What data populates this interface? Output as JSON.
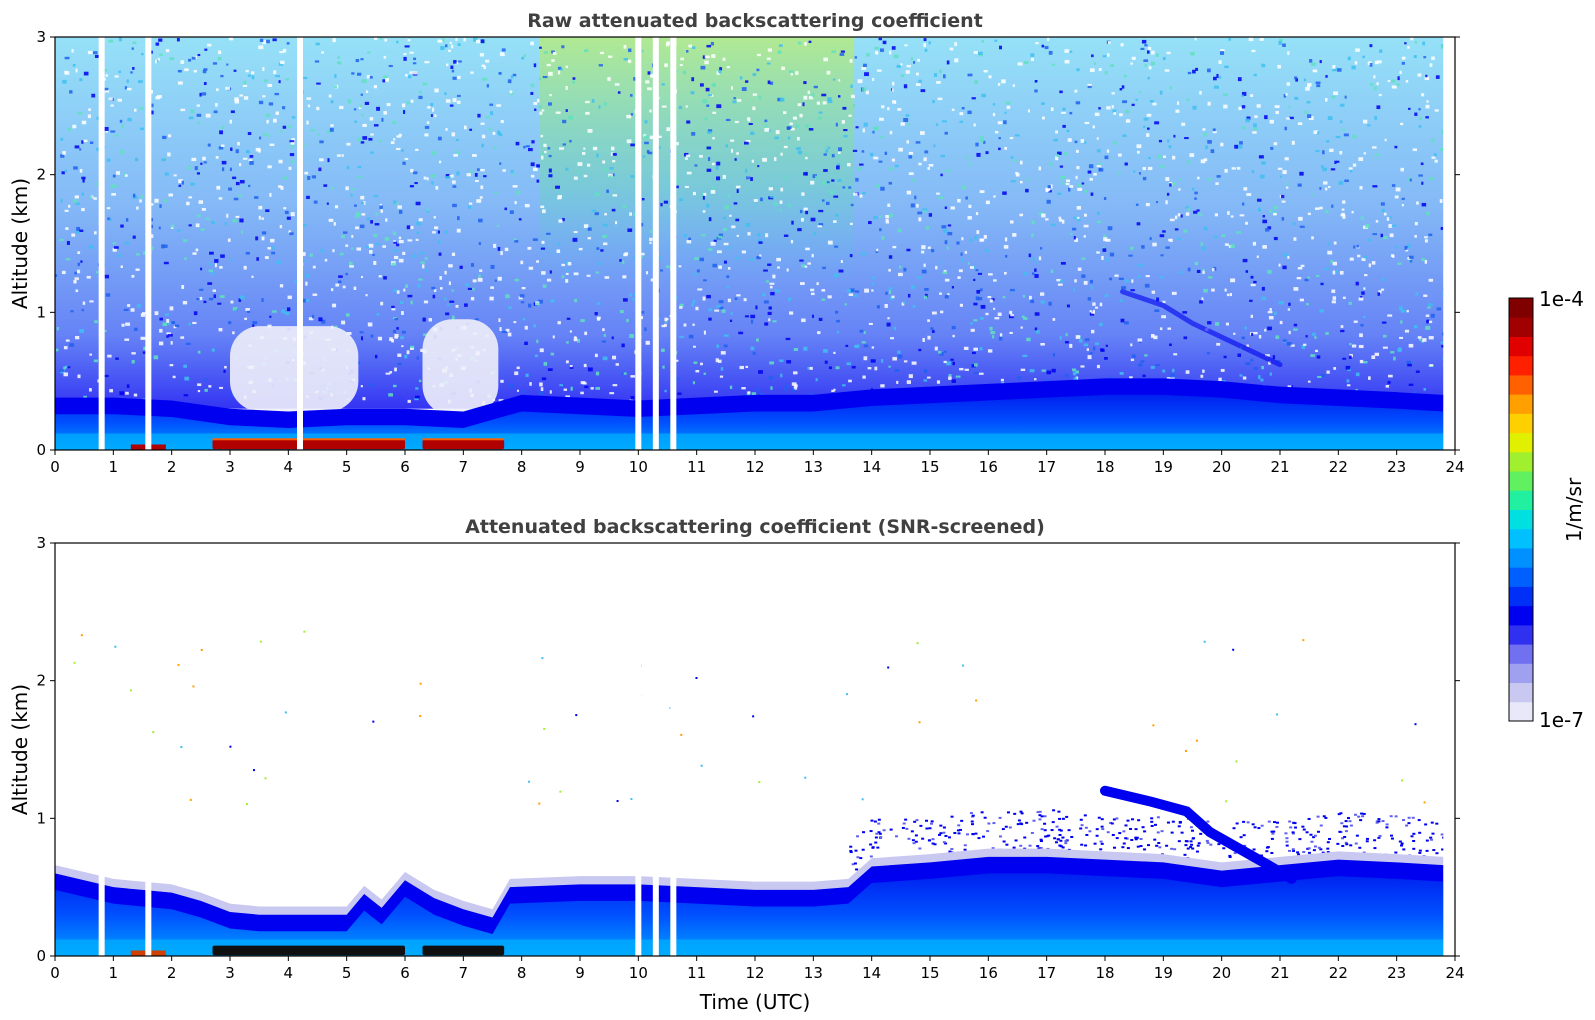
{
  "chart_data": [
    {
      "type": "heatmap",
      "title": "Raw attenuated backscattering coefficient",
      "xlabel": "",
      "ylabel": "Altitude (km)",
      "xlim": [
        0,
        24
      ],
      "ylim": [
        0,
        3
      ],
      "x_ticks": [
        "0",
        "1",
        "2",
        "3",
        "4",
        "5",
        "6",
        "7",
        "8",
        "9",
        "10",
        "11",
        "12",
        "13",
        "14",
        "15",
        "16",
        "17",
        "18",
        "19",
        "20",
        "21",
        "22",
        "23",
        "24"
      ],
      "y_ticks": [
        "0",
        "1",
        "2",
        "3"
      ],
      "boundary_layer_top_km": [
        [
          0,
          0.38
        ],
        [
          1,
          0.38
        ],
        [
          2,
          0.36
        ],
        [
          3,
          0.3
        ],
        [
          4,
          0.28
        ],
        [
          5,
          0.3
        ],
        [
          6,
          0.3
        ],
        [
          7,
          0.28
        ],
        [
          8,
          0.4
        ],
        [
          9,
          0.38
        ],
        [
          10,
          0.36
        ],
        [
          11,
          0.38
        ],
        [
          12,
          0.4
        ],
        [
          13,
          0.4
        ],
        [
          14,
          0.44
        ],
        [
          15,
          0.46
        ],
        [
          16,
          0.48
        ],
        [
          17,
          0.5
        ],
        [
          18,
          0.52
        ],
        [
          19,
          0.52
        ],
        [
          20,
          0.5
        ],
        [
          21,
          0.46
        ],
        [
          22,
          0.44
        ],
        [
          23,
          0.42
        ],
        [
          23.8,
          0.4
        ]
      ],
      "elevated_layer_km": [
        [
          18.3,
          1.15
        ],
        [
          19,
          1.05
        ],
        [
          19.5,
          0.92
        ],
        [
          20,
          0.82
        ],
        [
          20.5,
          0.72
        ],
        [
          21,
          0.62
        ]
      ],
      "dense_layer_segments_utc": [
        [
          2.7,
          6.0
        ],
        [
          6.3,
          7.7
        ]
      ],
      "noise_gaps_utc": [
        0.8,
        1.6,
        4.2,
        10.0,
        10.3,
        10.6
      ],
      "data_end_utc": 23.8
    },
    {
      "type": "heatmap",
      "title": "Attenuated backscattering coefficient (SNR-screened)",
      "xlabel": "Time (UTC)",
      "ylabel": "Altitude (km)",
      "xlim": [
        0,
        24
      ],
      "ylim": [
        0,
        3
      ],
      "x_ticks": [
        "0",
        "1",
        "2",
        "3",
        "4",
        "5",
        "6",
        "7",
        "8",
        "9",
        "10",
        "11",
        "12",
        "13",
        "14",
        "15",
        "16",
        "17",
        "18",
        "19",
        "20",
        "21",
        "22",
        "23",
        "24"
      ],
      "y_ticks": [
        "0",
        "1",
        "2",
        "3"
      ],
      "boundary_layer_top_km": [
        [
          0,
          0.6
        ],
        [
          0.5,
          0.55
        ],
        [
          1,
          0.5
        ],
        [
          1.5,
          0.48
        ],
        [
          2,
          0.46
        ],
        [
          2.5,
          0.4
        ],
        [
          3,
          0.32
        ],
        [
          3.5,
          0.3
        ],
        [
          4,
          0.3
        ],
        [
          4.5,
          0.3
        ],
        [
          5,
          0.3
        ],
        [
          5.3,
          0.45
        ],
        [
          5.6,
          0.35
        ],
        [
          6,
          0.55
        ],
        [
          6.5,
          0.42
        ],
        [
          7,
          0.34
        ],
        [
          7.5,
          0.28
        ],
        [
          7.8,
          0.5
        ],
        [
          9,
          0.52
        ],
        [
          10,
          0.52
        ],
        [
          11,
          0.5
        ],
        [
          12,
          0.48
        ],
        [
          13,
          0.48
        ],
        [
          13.6,
          0.5
        ],
        [
          14,
          0.65
        ],
        [
          15,
          0.68
        ],
        [
          16,
          0.72
        ],
        [
          17,
          0.72
        ],
        [
          18,
          0.7
        ],
        [
          19,
          0.68
        ],
        [
          20,
          0.62
        ],
        [
          21,
          0.66
        ],
        [
          22,
          0.7
        ],
        [
          23,
          0.68
        ],
        [
          23.8,
          0.66
        ]
      ],
      "elevated_layer_km": [
        [
          18.0,
          1.2
        ],
        [
          18.8,
          1.12
        ],
        [
          19.4,
          1.05
        ],
        [
          19.8,
          0.9
        ],
        [
          20.3,
          0.78
        ],
        [
          20.8,
          0.66
        ],
        [
          21.2,
          0.56
        ]
      ],
      "dense_layer_segments_utc": [
        [
          2.7,
          6.0
        ],
        [
          6.3,
          7.7
        ]
      ],
      "noise_gaps_utc": [
        0.8,
        1.6,
        10.0,
        10.3,
        10.6
      ],
      "data_end_utc": 23.8
    }
  ],
  "colorbar": {
    "label": "1/m/sr",
    "max_label": "1e-4",
    "min_label": "1e-7",
    "colors": [
      "#e8e8f8",
      "#c8c8f0",
      "#a0a0f0",
      "#7070f0",
      "#3030f0",
      "#0000f0",
      "#0030f8",
      "#0060ff",
      "#0090ff",
      "#00c0ff",
      "#00e0e0",
      "#20f0a0",
      "#60f060",
      "#a0f030",
      "#e0f000",
      "#ffd000",
      "#ffa000",
      "#ff6000",
      "#ff2000",
      "#e00000",
      "#a00000",
      "#800000"
    ]
  }
}
